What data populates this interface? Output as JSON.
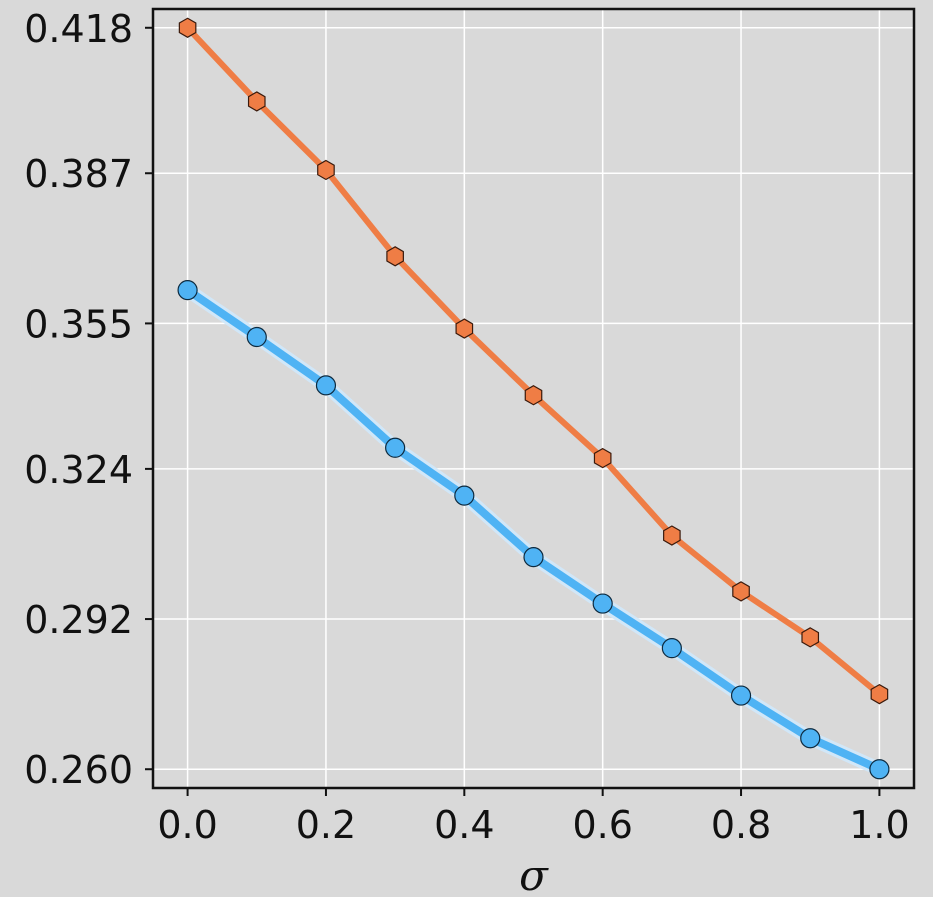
{
  "chart_data": {
    "type": "line",
    "title": "",
    "xlabel": "σ",
    "ylabel": "",
    "x": [
      0.0,
      0.1,
      0.2,
      0.3,
      0.4,
      0.5,
      0.6,
      0.7,
      0.8,
      0.9,
      1.0
    ],
    "xlim": [
      -0.05,
      1.05
    ],
    "ylim": [
      0.256,
      0.422
    ],
    "xticks": [
      0.0,
      0.2,
      0.4,
      0.6,
      0.8,
      1.0
    ],
    "xtick_labels": [
      "0.0",
      "0.2",
      "0.4",
      "0.6",
      "0.8",
      "1.0"
    ],
    "yticks": [
      0.26,
      0.292,
      0.324,
      0.355,
      0.387,
      0.418
    ],
    "ytick_labels": [
      "0.260",
      "0.292",
      "0.324",
      "0.355",
      "0.387",
      "0.418"
    ],
    "grid": true,
    "legend": "none",
    "series": [
      {
        "color": "#ef7d45",
        "marker": "hexagon",
        "values": [
          0.418,
          0.4023,
          0.3877,
          0.3693,
          0.3539,
          0.3397,
          0.3263,
          0.3098,
          0.2979,
          0.2881,
          0.276
        ]
      },
      {
        "color": "#4fb3f4",
        "marker": "circle",
        "band": true,
        "values": [
          0.3621,
          0.3521,
          0.3418,
          0.3285,
          0.3183,
          0.3052,
          0.2953,
          0.2858,
          0.2757,
          0.2666,
          0.26
        ]
      }
    ],
    "colors": {
      "background": "#d9d9d9",
      "grid": "#ffffff",
      "axis": "#111111"
    }
  }
}
